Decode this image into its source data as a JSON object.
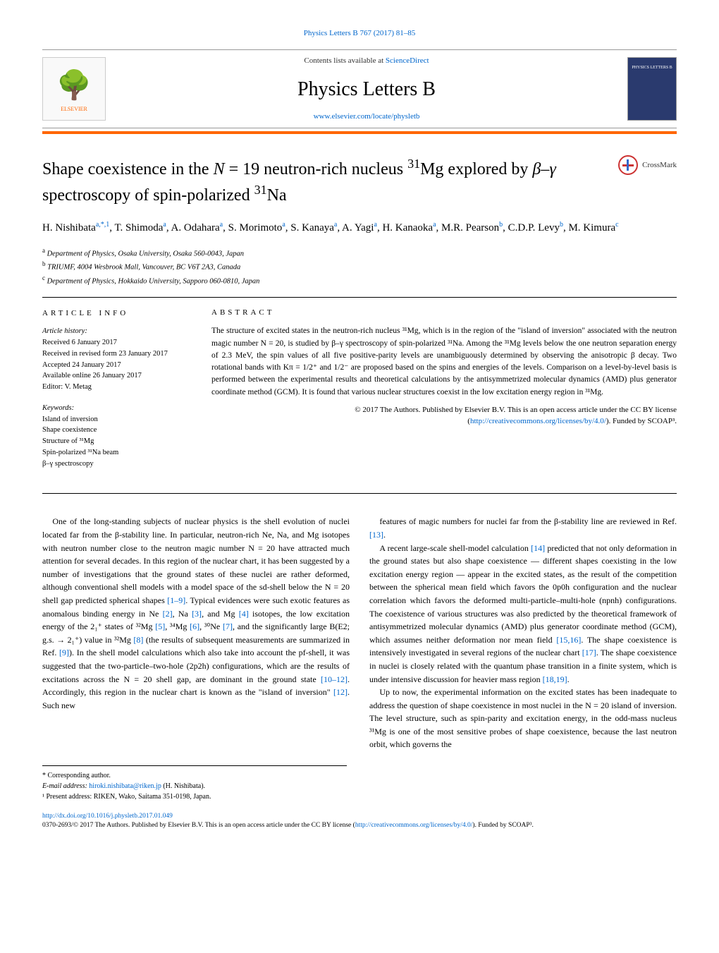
{
  "journal_ref": "Physics Letters B 767 (2017) 81–85",
  "banner": {
    "contents_prefix": "Contents lists available at ",
    "contents_link": "ScienceDirect",
    "journal_name": "Physics Letters B",
    "url": "www.elsevier.com/locate/physletb",
    "elsevier": "ELSEVIER",
    "cover_text": "PHYSICS LETTERS B"
  },
  "crossmark": "CrossMark",
  "title_parts": {
    "p1": "Shape coexistence in the ",
    "p2": " neutron-rich nucleus ",
    "p3": "Mg explored by ",
    "p4": " spectroscopy of spin-polarized ",
    "p5": "Na",
    "N_eq": "N = 19",
    "nuc1": "31",
    "bg": "β–γ",
    "nuc2": "31"
  },
  "authors_html": "H. Nishibata|a,*,1|, T. Shimoda|a|, A. Odahara|a|, S. Morimoto|a|, S. Kanaya|a|, A. Yagi|a|, H. Kanaoka|a|, M.R. Pearson|b|, C.D.P. Levy|b|, M. Kimura|c|",
  "affiliations": [
    {
      "sup": "a",
      "text": "Department of Physics, Osaka University, Osaka 560-0043, Japan"
    },
    {
      "sup": "b",
      "text": "TRIUMF, 4004 Wesbrook Mall, Vancouver, BC V6T 2A3, Canada"
    },
    {
      "sup": "c",
      "text": "Department of Physics, Hokkaido University, Sapporo 060-0810, Japan"
    }
  ],
  "article_info_heading": "ARTICLE INFO",
  "history": {
    "label": "Article history:",
    "received": "Received 6 January 2017",
    "revised": "Received in revised form 23 January 2017",
    "accepted": "Accepted 24 January 2017",
    "online": "Available online 26 January 2017",
    "editor": "Editor: V. Metag"
  },
  "keywords": {
    "label": "Keywords:",
    "items": [
      "Island of inversion",
      "Shape coexistence",
      "Structure of ³¹Mg",
      "Spin-polarized ³¹Na beam",
      "β–γ spectroscopy"
    ]
  },
  "abstract_heading": "ABSTRACT",
  "abstract": "The structure of excited states in the neutron-rich nucleus ³¹Mg, which is in the region of the \"island of inversion\" associated with the neutron magic number N = 20, is studied by β–γ spectroscopy of spin-polarized ³¹Na. Among the ³¹Mg levels below the one neutron separation energy of 2.3 MeV, the spin values of all five positive-parity levels are unambiguously determined by observing the anisotropic β decay. Two rotational bands with Kπ = 1/2⁺ and 1/2⁻ are proposed based on the spins and energies of the levels. Comparison on a level-by-level basis is performed between the experimental results and theoretical calculations by the antisymmetrized molecular dynamics (AMD) plus generator coordinate method (GCM). It is found that various nuclear structures coexist in the low excitation energy region in ³¹Mg.",
  "copyright": {
    "line1": "© 2017 The Authors. Published by Elsevier B.V. This is an open access article under the CC BY license",
    "license_url_text": "http://creativecommons.org/licenses/by/4.0/",
    "funded": "). Funded by SCOAP³."
  },
  "body": {
    "col1": {
      "p1a": "One of the long-standing subjects of nuclear physics is the shell evolution of nuclei located far from the β-stability line. In particular, neutron-rich Ne, Na, and Mg isotopes with neutron number close to the neutron magic number N = 20 have attracted much attention for several decades. In this region of the nuclear chart, it has been suggested by a number of investigations that the ground states of these nuclei are rather deformed, although conventional shell models with a model space of the sd-shell below the N = 20 shell gap predicted spherical shapes ",
      "r1": "[1–9]",
      "p1b": ". Typical evidences were such exotic features as anomalous binding energy in Ne ",
      "r2": "[2]",
      "p1c": ", Na ",
      "r3": "[3]",
      "p1d": ", and Mg ",
      "r4": "[4]",
      "p1e": " isotopes, the low excitation energy of the 2₁⁺ states of ³²Mg ",
      "r5": "[5]",
      "p1f": ", ³⁴Mg ",
      "r6": "[6]",
      "p1g": ", ³⁰Ne ",
      "r7": "[7]",
      "p1h": ", and the significantly large B(E2; g.s. → 2₁⁺) value in ³²Mg ",
      "r8": "[8]",
      "p1i": " (the results of subsequent measurements are summarized in Ref. ",
      "r9": "[9]",
      "p1j": "). In the shell model calculations which also take into account the pf-shell, it was suggested that the two-particle–two-hole (2p2h) configurations, which are the results of excitations across the N = 20 shell gap, are dominant in the ground state ",
      "r10": "[10–12]",
      "p1k": ". Accordingly, this region in the nuclear chart is known as the \"island of inversion\" ",
      "r12": "[12]",
      "p1l": ". Such new"
    },
    "col2": {
      "p1a": "features of magic numbers for nuclei far from the β-stability line are reviewed in Ref. ",
      "r13": "[13]",
      "p1b": ".",
      "p2a": "A recent large-scale shell-model calculation ",
      "r14": "[14]",
      "p2b": " predicted that not only deformation in the ground states but also shape coexistence — different shapes coexisting in the low excitation energy region — appear in the excited states, as the result of the competition between the spherical mean field which favors the 0p0h configuration and the nuclear correlation which favors the deformed multi-particle–multi-hole (npnh) configurations. The coexistence of various structures was also predicted by the theoretical framework of antisymmetrized molecular dynamics (AMD) plus generator coordinate method (GCM), which assumes neither deformation nor mean field ",
      "r15": "[15,16]",
      "p2c": ". The shape coexistence is intensively investigated in several regions of the nuclear chart ",
      "r17": "[17]",
      "p2d": ". The shape coexistence in nuclei is closely related with the quantum phase transition in a finite system, which is under intensive discussion for heavier mass region ",
      "r18": "[18,19]",
      "p2e": ".",
      "p3": "Up to now, the experimental information on the excited states has been inadequate to address the question of shape coexistence in most nuclei in the N = 20 island of inversion. The level structure, such as spin-parity and excitation energy, in the odd-mass nucleus ³¹Mg is one of the most sensitive probes of shape coexistence, because the last neutron orbit, which governs the"
    }
  },
  "footnotes": {
    "corr": "* Corresponding author.",
    "email_label": "E-mail address: ",
    "email": "hiroki.nishibata@riken.jp",
    "email_name": " (H. Nishibata).",
    "present": "¹ Present address: RIKEN, Wako, Saitama 351-0198, Japan."
  },
  "footer": {
    "doi": "http://dx.doi.org/10.1016/j.physletb.2017.01.049",
    "issn_line": "0370-2693/© 2017 The Authors. Published by Elsevier B.V. This is an open access article under the CC BY license (",
    "license": "http://creativecommons.org/licenses/by/4.0/",
    "funded": "). Funded by SCOAP³."
  },
  "colors": {
    "link": "#0066cc",
    "orange": "#ff6600",
    "cover_bg": "#2a3a6e"
  }
}
